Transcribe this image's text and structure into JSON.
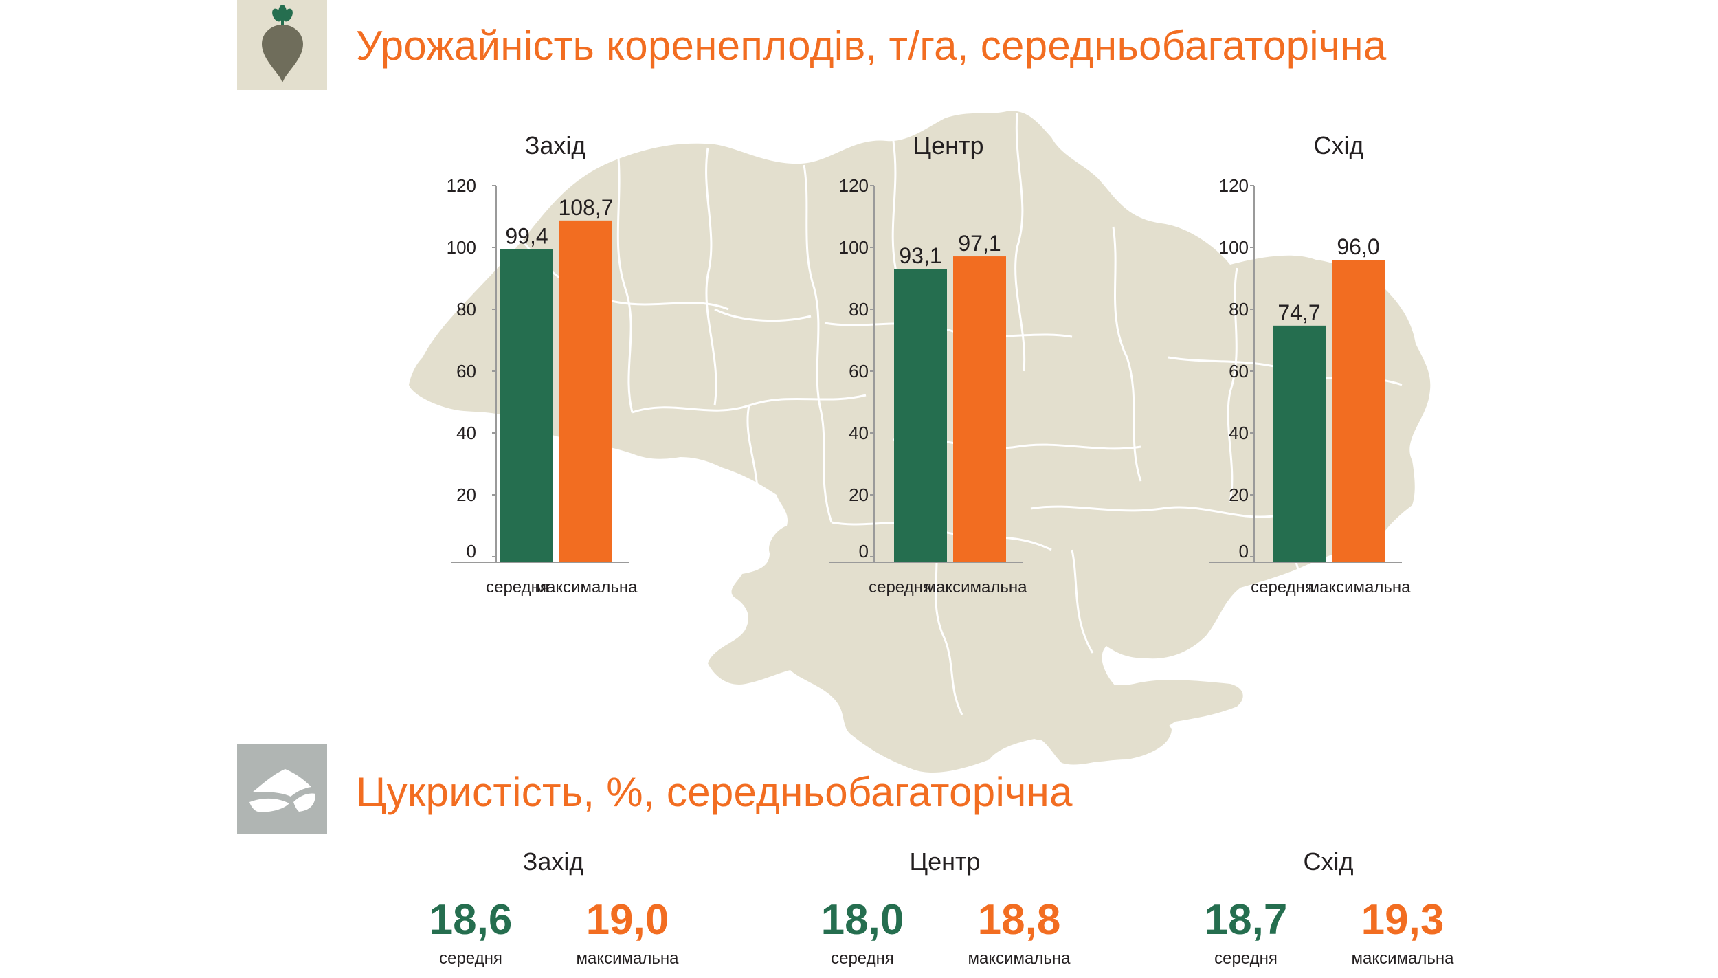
{
  "colors": {
    "accent": "#F26D21",
    "avg": "#256E4F",
    "max": "#F26D21",
    "map_fill": "#E3DFCE",
    "map_border": "#FFFFFF",
    "icon_bg_beet": "#E3DFCE",
    "icon_bg_sugar": "#B0B5B3",
    "text": "#231F20"
  },
  "icons": {
    "yield": "beet-icon",
    "sugar": "sugar-pile-icon"
  },
  "yield_section": {
    "title": "Урожайність коренеплодів, т/га, середньобагаторічна"
  },
  "sugar_section": {
    "title": "Цукристість, %, середньобагаторічна",
    "regions": [
      {
        "name": "Захід",
        "avg_value": "18,6",
        "avg_label": "середня",
        "max_value": "19,0",
        "max_label": "максимальна"
      },
      {
        "name": "Центр",
        "avg_value": "18,0",
        "avg_label": "середня",
        "max_value": "18,8",
        "max_label": "максимальна"
      },
      {
        "name": "Схід",
        "avg_value": "18,7",
        "avg_label": "середня",
        "max_value": "19,3",
        "max_label": "максимальна"
      }
    ]
  },
  "chart_data": [
    {
      "type": "bar",
      "title": "Захід",
      "categories": [
        "середня",
        "максимальна"
      ],
      "values": [
        99.4,
        108.7
      ],
      "value_labels": [
        "99,4",
        "108,7"
      ],
      "ylim": [
        0,
        120
      ],
      "yticks": [
        0,
        20,
        40,
        60,
        80,
        100,
        120
      ],
      "grid": false
    },
    {
      "type": "bar",
      "title": "Центр",
      "categories": [
        "середня",
        "максимальна"
      ],
      "values": [
        93.1,
        97.1
      ],
      "value_labels": [
        "93,1",
        "97,1"
      ],
      "ylim": [
        0,
        120
      ],
      "yticks": [
        0,
        20,
        40,
        60,
        80,
        100,
        120
      ],
      "grid": false
    },
    {
      "type": "bar",
      "title": "Схід",
      "categories": [
        "середня",
        "максимальна"
      ],
      "values": [
        74.7,
        96.0
      ],
      "value_labels": [
        "74,7",
        "96,0"
      ],
      "ylim": [
        0,
        120
      ],
      "yticks": [
        0,
        20,
        40,
        60,
        80,
        100,
        120
      ],
      "grid": false
    }
  ]
}
